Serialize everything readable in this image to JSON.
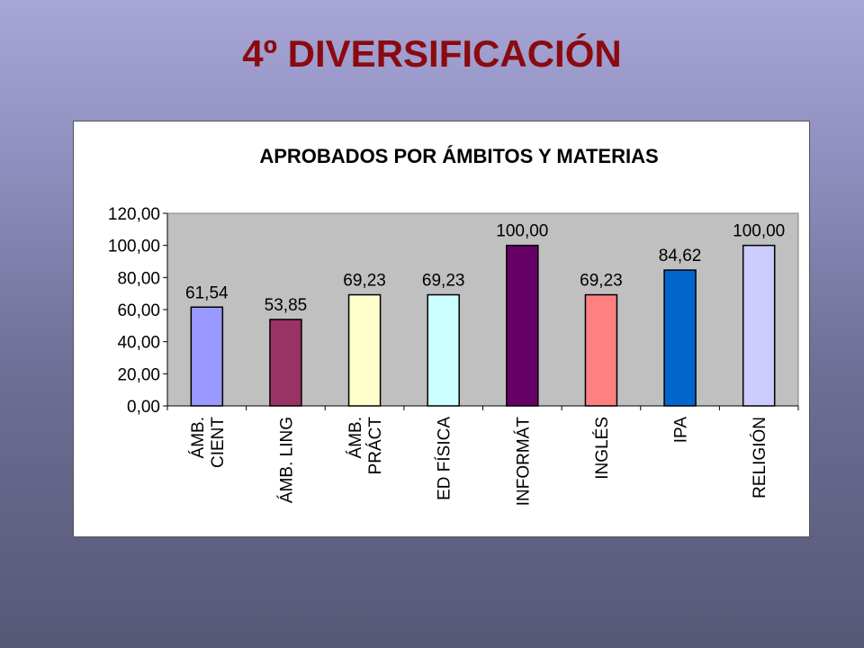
{
  "slide": {
    "title": "4º DIVERSIFICACIÓN"
  },
  "chart_data": {
    "type": "bar",
    "title": "APROBADOS POR ÁMBITOS Y MATERIAS",
    "xlabel": "",
    "ylabel": "",
    "categories": [
      [
        "ÁMB.",
        "CIENT"
      ],
      [
        "ÁMB. LING"
      ],
      [
        "ÁMB.",
        "PRÁCT"
      ],
      [
        "ED FÍSICA"
      ],
      [
        "INFORMÁT"
      ],
      [
        "INGLÉS"
      ],
      [
        "IPA"
      ],
      [
        "RELIGIÓN"
      ]
    ],
    "values": [
      61.54,
      53.85,
      69.23,
      69.23,
      100.0,
      69.23,
      84.62,
      100.0
    ],
    "data_labels": [
      "61,54",
      "53,85",
      "69,23",
      "69,23",
      "100,00",
      "69,23",
      "84,62",
      "100,00"
    ],
    "bar_colors": [
      "#9999ff",
      "#993366",
      "#ffffcc",
      "#ccffff",
      "#660066",
      "#ff8080",
      "#0066cc",
      "#ccccff"
    ],
    "yticks": [
      "0,00",
      "20,00",
      "40,00",
      "60,00",
      "80,00",
      "100,00",
      "120,00"
    ],
    "ylim": [
      0,
      120
    ],
    "plot_background": "#c0c0c0",
    "grid": false,
    "legend": "none"
  }
}
